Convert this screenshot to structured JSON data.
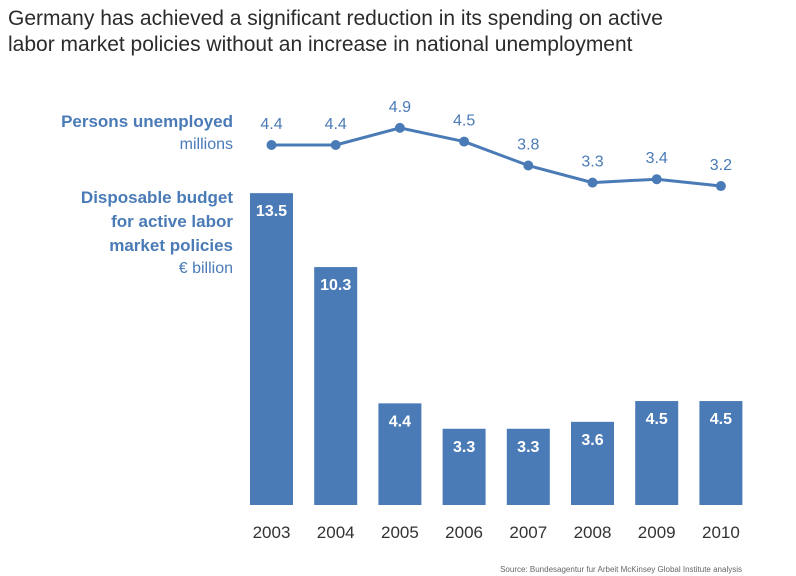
{
  "title_lines": [
    "Germany has achieved a significant reduction in its spending on active",
    "labor market policies without an increase in national unemployment"
  ],
  "source": "Source: Bundesagentur fur Arbeit McKinsey Global Institute analysis",
  "colors": {
    "series": "#4a7bb7",
    "text": "#2b2b2b",
    "bar_label": "#ffffff"
  },
  "chart_data": {
    "type": "bar+line",
    "categories": [
      "2003",
      "2004",
      "2005",
      "2006",
      "2007",
      "2008",
      "2009",
      "2010"
    ],
    "series": [
      {
        "name": "Persons unemployed",
        "unit": "millions",
        "type": "line",
        "values": [
          4.4,
          4.4,
          4.9,
          4.5,
          3.8,
          3.3,
          3.4,
          3.2
        ],
        "labels": [
          "4.4",
          "4.4",
          "4.9",
          "4.5",
          "3.8",
          "3.3",
          "3.4",
          "3.2"
        ]
      },
      {
        "name_lines": [
          "Disposable budget",
          "for active labor",
          "market policies"
        ],
        "unit": "€ billion",
        "type": "bar",
        "values": [
          13.5,
          10.3,
          4.4,
          3.3,
          3.3,
          3.6,
          4.5,
          4.5
        ],
        "labels": [
          "13.5",
          "10.3",
          "4.4",
          "3.3",
          "3.3",
          "3.6",
          "4.5",
          "4.5"
        ]
      }
    ]
  }
}
